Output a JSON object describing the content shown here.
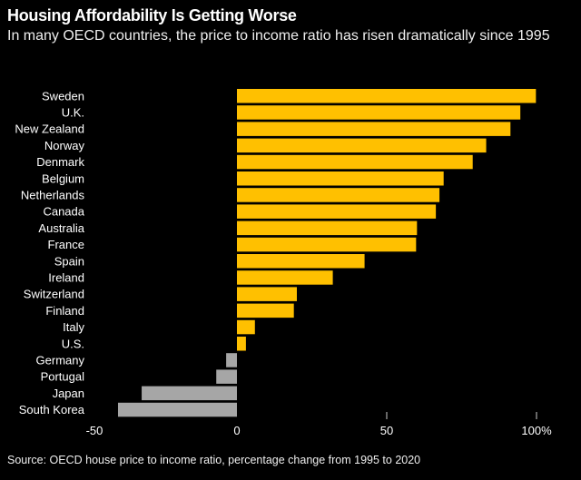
{
  "chart_data": {
    "type": "bar",
    "orientation": "horizontal",
    "title": "Housing Affordability Is Getting Worse",
    "subtitle": "In many OECD countries, the price to income ratio has risen dramatically since 1995",
    "source": "Source: OECD house price to income ratio, percentage change from 1995 to 2020",
    "categories": [
      "Sweden",
      "U.K.",
      "New Zealand",
      "Norway",
      "Denmark",
      "Belgium",
      "Netherlands",
      "Canada",
      "Australia",
      "France",
      "Spain",
      "Ireland",
      "Switzerland",
      "Finland",
      "Italy",
      "U.S.",
      "Germany",
      "Portugal",
      "Japan",
      "South Korea"
    ],
    "values": [
      99.8,
      94.6,
      91.3,
      83.2,
      78.7,
      69,
      67.6,
      66.4,
      60.1,
      59.8,
      42.6,
      32,
      20,
      19,
      6,
      3,
      -3.6,
      -6.9,
      -31.8,
      -39.7
    ],
    "xlim": [
      -50,
      100
    ],
    "xticks": [
      -50,
      0,
      50,
      100
    ],
    "xtick_labels": [
      "-50",
      "0",
      "50",
      "100%"
    ],
    "grid": false,
    "colors": {
      "positive": "#ffc000",
      "negative": "#a6a6a6",
      "background": "#000000"
    }
  }
}
